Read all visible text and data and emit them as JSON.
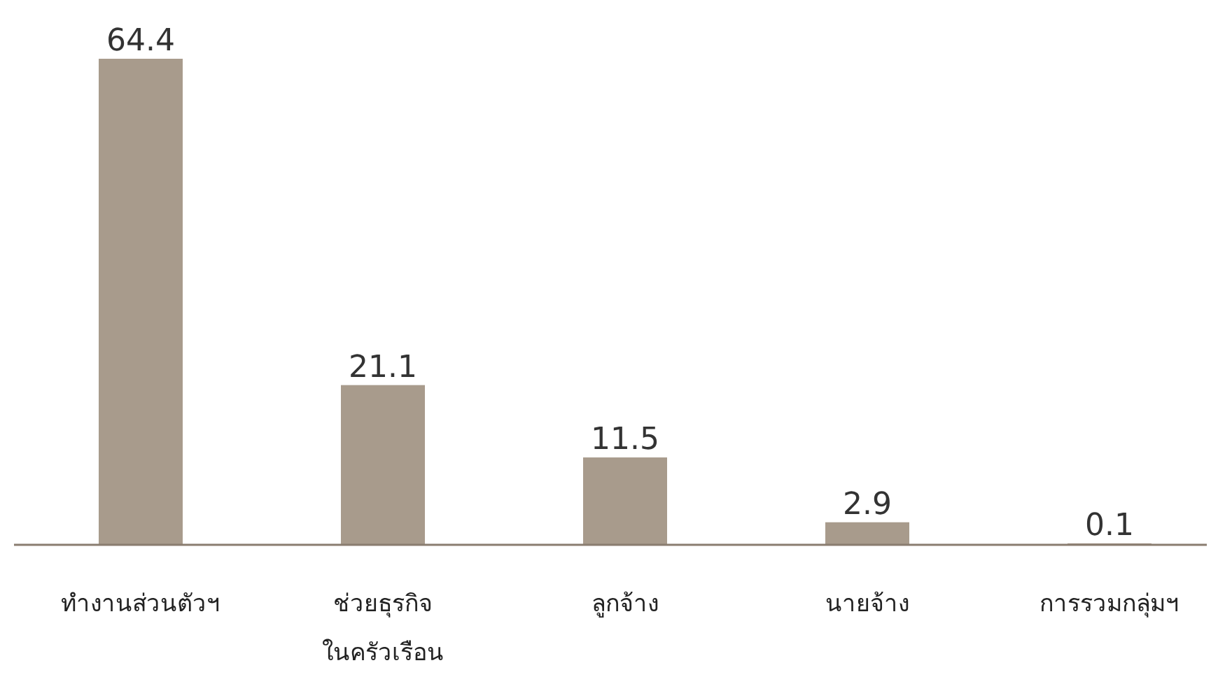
{
  "chart_data": {
    "type": "bar",
    "categories": [
      "ทำงานส่วนตัวฯ",
      "ช่วยธุรกิจ ในครัวเรือน",
      "ลูกจ้าง",
      "นายจ้าง",
      "การรวมกลุ่มฯ"
    ],
    "values": [
      64.4,
      21.1,
      11.5,
      2.9,
      0.1
    ],
    "color": "#a89b8c",
    "data_labels": true
  }
}
